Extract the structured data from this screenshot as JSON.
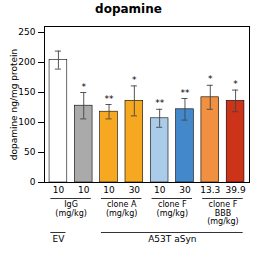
{
  "chart_data": {
    "type": "bar",
    "title": "dopamine",
    "ylabel": "dopamine ng/mg protein",
    "categories": [
      "10",
      "10",
      "10",
      "30",
      "10",
      "30",
      "13.3",
      "39.9"
    ],
    "values": [
      204,
      128,
      118,
      136,
      107,
      122,
      142,
      136
    ],
    "errors": [
      15,
      22,
      12,
      25,
      15,
      18,
      20,
      18
    ],
    "colors": [
      "#ffffff",
      "#aaaaaa",
      "#f5a820",
      "#f5a820",
      "#aacce8",
      "#4488cc",
      "#f09040",
      "#cc3318"
    ],
    "significance": [
      null,
      "*",
      "**",
      "*",
      "**",
      "**",
      "*",
      "*"
    ],
    "groups": [
      {
        "label": "IgG\n(mg/kg)",
        "start": 0,
        "end": 1
      },
      {
        "label": "clone A\n(mg/kg)",
        "start": 2,
        "end": 3
      },
      {
        "label": "clone F\n(mg/kg)",
        "start": 4,
        "end": 5
      },
      {
        "label": "clone F\nBBB\n(mg/kg)",
        "start": 6,
        "end": 7
      }
    ],
    "bottom_groups": [
      {
        "label": "EV",
        "start": 0,
        "end": 0
      },
      {
        "label": "A53T aSyn",
        "start": 2,
        "end": 7
      }
    ],
    "ylim": [
      0,
      260
    ],
    "yticks": [
      0,
      50,
      100,
      150,
      200,
      250
    ],
    "grid": false
  }
}
